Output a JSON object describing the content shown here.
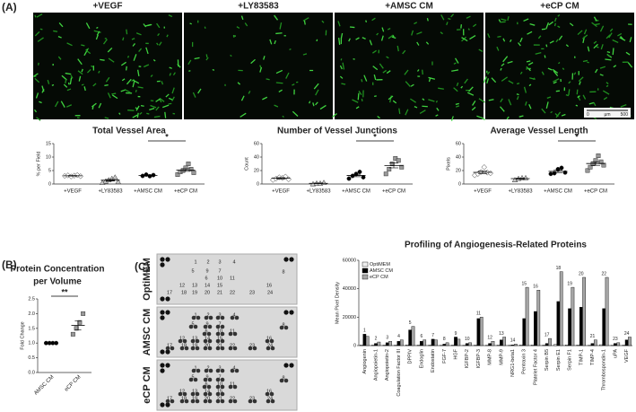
{
  "panel_labels": [
    "(A)",
    "(B)",
    "(C)"
  ],
  "images": [
    "+VEGF",
    "+LY83583",
    "+AMSC CM",
    "+eCP CM"
  ],
  "scale_bar": {
    "start": "0",
    "unit": "μm",
    "end": "500"
  },
  "membranes": {
    "labels": [
      "OptiMEM",
      "AMSC CM",
      "eCP CM"
    ],
    "spots": [
      1,
      2,
      3,
      4,
      5,
      6,
      7,
      8,
      9,
      10,
      11,
      12,
      13,
      14,
      15,
      16,
      17,
      18,
      19,
      20,
      21,
      22,
      23,
      24
    ]
  },
  "chart_data": [
    {
      "type": "dot",
      "title": "Total Vessel Area",
      "y_label": "% per Field",
      "categories": [
        "+VEGF",
        "+LY83583",
        "+AMSC CM",
        "+eCP CM"
      ],
      "markers": [
        "diamond",
        "triangle",
        "circle",
        "square"
      ],
      "marker_colors": [
        "#ffffff",
        "#c8c8c8",
        "#000000",
        "#999999"
      ],
      "points": [
        [
          3.0,
          3.2,
          2.8,
          3.1,
          3.3,
          2.9
        ],
        [
          0.5,
          1.0,
          1.5,
          2.0,
          2.5,
          0.8
        ],
        [
          3.0,
          3.5,
          2.9,
          3.3
        ],
        [
          3.5,
          4.5,
          5.0,
          6.0,
          7.5,
          5.5,
          4.2
        ]
      ],
      "means": [
        3.05,
        1.4,
        3.2,
        5.2
      ],
      "errors": [
        0.1,
        0.3,
        0.15,
        0.5
      ],
      "significance": {
        "label": "*",
        "between": [
          2,
          3
        ]
      },
      "ylim": [
        0,
        15
      ],
      "yticks": [
        0,
        5,
        10,
        15
      ]
    },
    {
      "type": "dot",
      "title": "Number of  Vessel Junctions",
      "y_label": "Count",
      "categories": [
        "+VEGF",
        "+LY83583",
        "+AMSC CM",
        "+eCP CM"
      ],
      "markers": [
        "diamond",
        "triangle",
        "circle",
        "square"
      ],
      "marker_colors": [
        "#ffffff",
        "#c8c8c8",
        "#000000",
        "#999999"
      ],
      "points": [
        [
          6,
          8,
          10,
          9,
          11,
          7
        ],
        [
          0,
          1,
          1,
          2
        ],
        [
          8,
          12,
          15,
          18,
          10
        ],
        [
          15,
          22,
          30,
          38,
          35,
          25
        ]
      ],
      "means": [
        8.5,
        1,
        12.6,
        27.5
      ],
      "errors": [
        1,
        0.4,
        1.8,
        3.5
      ],
      "significance": {
        "label": "*",
        "between": [
          2,
          3
        ]
      },
      "ylim": [
        0,
        60
      ],
      "yticks": [
        0,
        20,
        40,
        60
      ]
    },
    {
      "type": "dot",
      "title": "Average Vessel Length",
      "y_label": "Pixels",
      "categories": [
        "+VEGF",
        "+LY83583",
        "+AMSC CM",
        "+eCP CM"
      ],
      "markers": [
        "diamond",
        "triangle",
        "circle",
        "square"
      ],
      "marker_colors": [
        "#ffffff",
        "#c8c8c8",
        "#000000",
        "#999999"
      ],
      "points": [
        [
          13,
          15,
          18,
          25,
          17,
          16
        ],
        [
          6,
          8,
          9,
          9
        ],
        [
          15,
          16,
          22,
          24,
          17
        ],
        [
          20,
          25,
          30,
          35,
          42,
          33,
          28
        ]
      ],
      "means": [
        17.3,
        8,
        18.8,
        30.4
      ],
      "errors": [
        1.8,
        0.7,
        1.8,
        2.7
      ],
      "significance": {
        "label": "*",
        "between": [
          2,
          3
        ]
      },
      "ylim": [
        0,
        60
      ],
      "yticks": [
        0,
        20,
        40,
        60
      ]
    },
    {
      "type": "dot",
      "title": [
        "Protein Concentration",
        "per Volume"
      ],
      "y_label": "Fold Change",
      "categories": [
        "AMSC CM",
        "eCP CM"
      ],
      "markers": [
        "circle",
        "square"
      ],
      "marker_colors": [
        "#000000",
        "#999999"
      ],
      "points": [
        [
          1,
          1,
          1,
          1
        ],
        [
          1.3,
          1.5,
          1.7,
          2.0
        ]
      ],
      "means": [
        1.0,
        1.6
      ],
      "errors": [
        0,
        0.15
      ],
      "significance": {
        "label": "**",
        "between": [
          0,
          1
        ]
      },
      "ylim": [
        0,
        2.5
      ],
      "yticks": [
        {
          "value": 0,
          "label": "0.0"
        },
        {
          "value": 0.5,
          "label": "0.5"
        },
        {
          "value": 1,
          "label": "1.0"
        },
        {
          "value": 1.5,
          "label": "1.5"
        },
        {
          "value": 2,
          "label": "2.0"
        },
        {
          "value": 2.5,
          "label": "2.5"
        }
      ]
    },
    {
      "type": "bar",
      "title": "Profiling of Angiogenesis-Related Proteins",
      "y_label": "Mean Pixel Density",
      "categories": [
        "Angiogenin",
        "Angiopoietin-1",
        "Angiopoietin-2",
        "Coagulation Factor III",
        "DPPIV",
        "Endoglin",
        "Endostatin",
        "FGF-7",
        "HGF",
        "IGFBP-2",
        "IGFBP-3",
        "MMP-8",
        "MMP-9",
        "NRG1-beta1",
        "Pentraxin 3",
        "Platelet Factor 4",
        "Serpin B5",
        "Serpin E1",
        "Serpin F1",
        "TIMP-1",
        "TIMP-4",
        "Thrombospondin-1",
        "uPA",
        "VEGF"
      ],
      "category_numbers": [
        1,
        2,
        3,
        4,
        5,
        6,
        7,
        8,
        9,
        10,
        11,
        12,
        13,
        14,
        15,
        16,
        17,
        18,
        19,
        20,
        21,
        22,
        23,
        24
      ],
      "series": [
        {
          "name": "OptiMEM",
          "color": "#eeeeee",
          "values": [
            500,
            300,
            300,
            300,
            500,
            300,
            300,
            200,
            300,
            200,
            300,
            200,
            300,
            200,
            500,
            500,
            300,
            800,
            500,
            500,
            200,
            600,
            200,
            300
          ]
        },
        {
          "name": "AMSC CM",
          "color": "#000000",
          "values": [
            8000,
            1500,
            2000,
            3000,
            11000,
            3000,
            4500,
            1000,
            6000,
            1500,
            19000,
            1500,
            4000,
            500,
            19000,
            24000,
            1500,
            31000,
            26000,
            27000,
            1500,
            26000,
            1500,
            4000
          ]
        },
        {
          "name": "eCP CM",
          "color": "#a6a6a6",
          "values": [
            6500,
            2500,
            3000,
            4000,
            13500,
            4000,
            4000,
            2000,
            4500,
            2000,
            20000,
            3000,
            6000,
            1000,
            41000,
            39000,
            5000,
            52000,
            41000,
            48000,
            4000,
            48000,
            2000,
            6000
          ]
        }
      ],
      "legend": "top-left",
      "ylim": [
        0,
        60000
      ],
      "yticks": [
        0,
        20000,
        40000,
        60000
      ]
    }
  ]
}
